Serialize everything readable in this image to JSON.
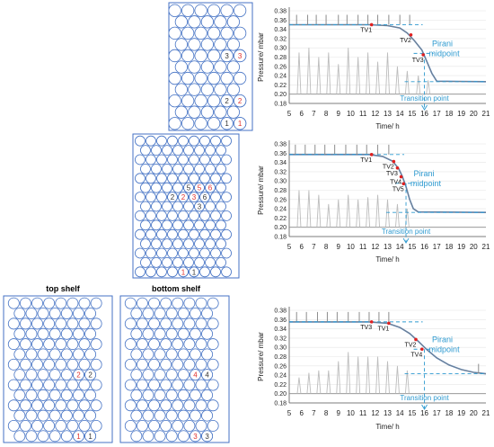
{
  "shelf_captions": {
    "top": "top shelf",
    "bottom": "bottom shelf"
  },
  "colors": {
    "vial_outline": "#4472c4",
    "black_marker": "#333333",
    "red_marker": "#e0302c",
    "pirani": "#4f81bd",
    "capacitance": "#8c8c8c",
    "guide": "#2e9ad0",
    "tv_point": "#e02020"
  },
  "trays": [
    {
      "id": "tray-1",
      "labels": [
        {
          "row": 4,
          "col": 4,
          "text": "3",
          "color": "black"
        },
        {
          "row": 4,
          "col": 5,
          "text": "3",
          "color": "red"
        },
        {
          "row": 8,
          "col": 4,
          "text": "2",
          "color": "black"
        },
        {
          "row": 8,
          "col": 5,
          "text": "2",
          "color": "red"
        },
        {
          "row": 10,
          "col": 4,
          "text": "1",
          "color": "black"
        },
        {
          "row": 10,
          "col": 5,
          "text": "1",
          "color": "red"
        }
      ]
    },
    {
      "id": "tray-2",
      "labels": [
        {
          "row": 5,
          "col": 4,
          "text": "5",
          "color": "black"
        },
        {
          "row": 5,
          "col": 5,
          "text": "5",
          "color": "red"
        },
        {
          "row": 5,
          "col": 6,
          "text": "6",
          "color": "red"
        },
        {
          "row": 6,
          "col": 3,
          "text": "2",
          "color": "black"
        },
        {
          "row": 6,
          "col": 4,
          "text": "2",
          "color": "red"
        },
        {
          "row": 6,
          "col": 5,
          "text": "3",
          "color": "red"
        },
        {
          "row": 6,
          "col": 6,
          "text": "6",
          "color": "black"
        },
        {
          "row": 7,
          "col": 5,
          "text": "3",
          "color": "black"
        },
        {
          "row": 14,
          "col": 4,
          "text": "1",
          "color": "red"
        },
        {
          "row": 14,
          "col": 5,
          "text": "1",
          "color": "black"
        }
      ]
    },
    {
      "id": "tray-top-shelf",
      "labels": [
        {
          "row": 7,
          "col": 5,
          "text": "2",
          "color": "red"
        },
        {
          "row": 7,
          "col": 6,
          "text": "2",
          "color": "black"
        },
        {
          "row": 13,
          "col": 5,
          "text": "1",
          "color": "red"
        },
        {
          "row": 13,
          "col": 6,
          "text": "1",
          "color": "black"
        }
      ]
    },
    {
      "id": "tray-bottom-shelf",
      "labels": [
        {
          "row": 7,
          "col": 5,
          "text": "4",
          "color": "red"
        },
        {
          "row": 7,
          "col": 6,
          "text": "4",
          "color": "black"
        },
        {
          "row": 13,
          "col": 5,
          "text": "3",
          "color": "red"
        },
        {
          "row": 13,
          "col": 6,
          "text": "3",
          "color": "black"
        }
      ]
    }
  ],
  "chart_data": [
    {
      "type": "line",
      "xlabel": "Time/ h",
      "ylabel": "Pressure/ mbar",
      "xlim": [
        5,
        21
      ],
      "ylim": [
        0.18,
        0.38
      ],
      "xticks": [
        "5",
        "6",
        "7",
        "8",
        "9",
        "10",
        "11",
        "12",
        "13",
        "14",
        "15",
        "16",
        "17",
        "18",
        "19",
        "20",
        "21"
      ],
      "yticks": [
        "0.18",
        "0.20",
        "0.22",
        "0.24",
        "0.26",
        "0.28",
        "0.30",
        "0.32",
        "0.34",
        "0.36",
        "0.38"
      ],
      "series": [
        {
          "key": "pirani",
          "x": [
            5,
            11.5,
            13,
            14,
            14.6,
            15.2,
            15.8,
            16.2,
            16.6,
            17,
            21
          ],
          "y": [
            0.35,
            0.35,
            0.348,
            0.343,
            0.332,
            0.315,
            0.295,
            0.27,
            0.245,
            0.228,
            0.227
          ]
        },
        {
          "key": "capacitance",
          "x": [
            5,
            21
          ],
          "y": [
            0.2,
            0.2
          ]
        }
      ],
      "spikes": [
        {
          "x": 5.8,
          "y": 0.29
        },
        {
          "x": 6.6,
          "y": 0.3
        },
        {
          "x": 7.4,
          "y": 0.28
        },
        {
          "x": 8.2,
          "y": 0.29
        },
        {
          "x": 9.0,
          "y": 0.265
        },
        {
          "x": 9.8,
          "y": 0.3
        },
        {
          "x": 10.6,
          "y": 0.28
        },
        {
          "x": 11.4,
          "y": 0.29
        },
        {
          "x": 12.2,
          "y": 0.27
        },
        {
          "x": 13.0,
          "y": 0.29
        },
        {
          "x": 13.8,
          "y": 0.26
        },
        {
          "x": 14.6,
          "y": 0.25
        },
        {
          "x": 15.5,
          "y": 0.24
        },
        {
          "x": 16.3,
          "y": 0.23
        }
      ],
      "tops": [
        5.6,
        6.5,
        7.2,
        8.0,
        9.0,
        9.7,
        10.6,
        11.4,
        12.2,
        13.1,
        14.0,
        14.8
      ],
      "tvs": [
        {
          "label": "TV1",
          "x": 11.7,
          "y": 0.35
        },
        {
          "label": "TV2",
          "x": 14.9,
          "y": 0.328
        },
        {
          "label": "TV3",
          "x": 15.9,
          "y": 0.285
        }
      ],
      "upper_level": 0.35,
      "lower_level": 0.227,
      "midpoint_y": 0.288,
      "transition_x": 16.0,
      "pirani_label": [
        "Pirani",
        "midpoint"
      ],
      "transition_label": "Transition point"
    },
    {
      "type": "line",
      "xlabel": "Time/ h",
      "ylabel": "Pressure/ mbar",
      "xlim": [
        5,
        21
      ],
      "ylim": [
        0.18,
        0.38
      ],
      "xticks": [
        "5",
        "6",
        "7",
        "8",
        "9",
        "10",
        "11",
        "12",
        "13",
        "14",
        "15",
        "16",
        "17",
        "18",
        "19",
        "20",
        "21"
      ],
      "yticks": [
        "0.18",
        "0.20",
        "0.22",
        "0.24",
        "0.26",
        "0.28",
        "0.30",
        "0.32",
        "0.34",
        "0.36",
        "0.38"
      ],
      "series": [
        {
          "key": "pirani",
          "x": [
            5,
            11.5,
            12.6,
            13.4,
            13.9,
            14.2,
            14.5,
            14.8,
            15.1,
            15.5,
            21
          ],
          "y": [
            0.357,
            0.357,
            0.353,
            0.343,
            0.327,
            0.31,
            0.288,
            0.26,
            0.24,
            0.233,
            0.232
          ]
        },
        {
          "key": "capacitance",
          "x": [
            5,
            21
          ],
          "y": [
            0.2,
            0.2
          ]
        }
      ],
      "spikes": [
        {
          "x": 5.8,
          "y": 0.28
        },
        {
          "x": 6.6,
          "y": 0.28
        },
        {
          "x": 7.4,
          "y": 0.27
        },
        {
          "x": 8.2,
          "y": 0.25
        },
        {
          "x": 9.0,
          "y": 0.26
        },
        {
          "x": 9.8,
          "y": 0.27
        },
        {
          "x": 10.6,
          "y": 0.26
        },
        {
          "x": 11.4,
          "y": 0.265
        },
        {
          "x": 12.2,
          "y": 0.27
        },
        {
          "x": 13.0,
          "y": 0.26
        },
        {
          "x": 13.8,
          "y": 0.25
        },
        {
          "x": 14.6,
          "y": 0.24
        }
      ],
      "tops": [
        5.5,
        6.3,
        7.1,
        7.9,
        8.7,
        9.6,
        10.5,
        11.3,
        12.2,
        13.1
      ],
      "tvs": [
        {
          "label": "TV1",
          "x": 11.7,
          "y": 0.357
        },
        {
          "label": "TV2",
          "x": 13.5,
          "y": 0.342
        },
        {
          "label": "TV3",
          "x": 13.8,
          "y": 0.328
        },
        {
          "label": "TV4",
          "x": 14.1,
          "y": 0.309
        },
        {
          "label": "TV5",
          "x": 14.3,
          "y": 0.294
        }
      ],
      "upper_level": 0.357,
      "lower_level": 0.232,
      "midpoint_y": 0.295,
      "transition_x": 14.5,
      "pirani_label": [
        "Pirani",
        "midpoint"
      ],
      "transition_label": "Transition point"
    },
    {
      "type": "line",
      "xlabel": "Time/ h",
      "ylabel": "Pressure/ mbar",
      "xlim": [
        5,
        21
      ],
      "ylim": [
        0.18,
        0.38
      ],
      "xticks": [
        "5",
        "6",
        "7",
        "8",
        "9",
        "10",
        "11",
        "12",
        "13",
        "14",
        "15",
        "16",
        "17",
        "18",
        "19",
        "20",
        "21"
      ],
      "yticks": [
        "0.18",
        "0.20",
        "0.22",
        "0.24",
        "0.26",
        "0.28",
        "0.30",
        "0.32",
        "0.34",
        "0.36",
        "0.38"
      ],
      "series": [
        {
          "key": "pirani",
          "x": [
            5,
            11.5,
            13,
            14,
            14.8,
            15.5,
            16.2,
            17,
            18,
            19,
            20,
            21
          ],
          "y": [
            0.355,
            0.355,
            0.352,
            0.343,
            0.33,
            0.313,
            0.295,
            0.277,
            0.262,
            0.252,
            0.246,
            0.243
          ]
        },
        {
          "key": "capacitance",
          "x": [
            5,
            21
          ],
          "y": [
            0.2,
            0.2
          ]
        }
      ],
      "spikes": [
        {
          "x": 5.8,
          "y": 0.235
        },
        {
          "x": 6.6,
          "y": 0.245
        },
        {
          "x": 7.4,
          "y": 0.25
        },
        {
          "x": 8.2,
          "y": 0.25
        },
        {
          "x": 9.0,
          "y": 0.27
        },
        {
          "x": 9.8,
          "y": 0.29
        },
        {
          "x": 10.6,
          "y": 0.28
        },
        {
          "x": 11.4,
          "y": 0.28
        },
        {
          "x": 12.2,
          "y": 0.28
        },
        {
          "x": 13.0,
          "y": 0.27
        },
        {
          "x": 13.8,
          "y": 0.26
        },
        {
          "x": 14.6,
          "y": 0.25
        }
      ],
      "tops": [
        5.6,
        6.4,
        7.3,
        8.1,
        8.9,
        9.8,
        10.7,
        11.5,
        12.3,
        13.1,
        20.4
      ],
      "tvs": [
        {
          "label": "TV3",
          "x": 11.7,
          "y": 0.355
        },
        {
          "label": "TV1",
          "x": 13.1,
          "y": 0.352
        },
        {
          "label": "TV2",
          "x": 15.3,
          "y": 0.317
        },
        {
          "label": "TV4",
          "x": 15.8,
          "y": 0.296
        }
      ],
      "upper_level": 0.355,
      "lower_level": 0.243,
      "midpoint_y": 0.296,
      "transition_x": 16.0,
      "pirani_label": [
        "Pirani",
        "midpoint"
      ],
      "transition_label": "Transition point"
    }
  ]
}
